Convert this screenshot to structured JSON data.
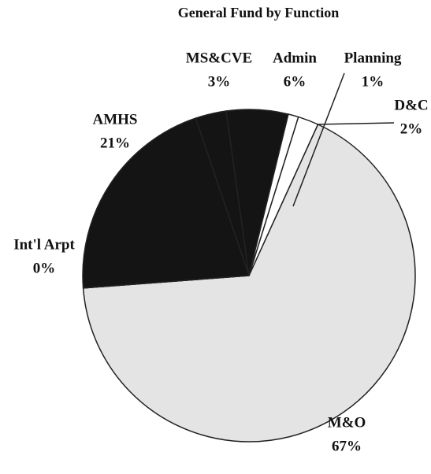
{
  "chart_data": {
    "type": "pie",
    "title": "General Fund by Function",
    "categories": [
      "M&O",
      "Int'l Arpt",
      "AMHS",
      "MS&CVE",
      "Admin",
      "Planning",
      "D&C"
    ],
    "values": [
      67,
      0,
      21,
      3,
      6,
      1,
      2
    ],
    "value_labels": [
      "67%",
      "0%",
      "21%",
      "3%",
      "6%",
      "1%",
      "2%"
    ],
    "colors": [
      "#e4e4e4",
      "#ffffff",
      "#141414",
      "#141414",
      "#141414",
      "#ffffff",
      "#ffffff"
    ]
  }
}
